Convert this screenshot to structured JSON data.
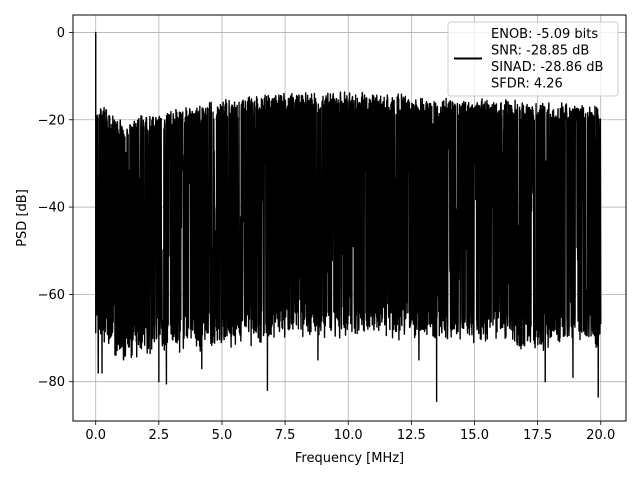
{
  "chart_data": {
    "type": "line",
    "title": "",
    "xlabel": "Frequency [MHz]",
    "ylabel": "PSD [dB]",
    "xlim": [
      -0.9,
      21.0
    ],
    "ylim": [
      -89,
      4
    ],
    "x_ticks": [
      0.0,
      2.5,
      5.0,
      7.5,
      10.0,
      12.5,
      15.0,
      17.5,
      20.0
    ],
    "x_tick_labels": [
      "0.0",
      "2.5",
      "5.0",
      "7.5",
      "10.0",
      "12.5",
      "15.0",
      "17.5",
      "20.0"
    ],
    "y_ticks": [
      0,
      -20,
      -40,
      -60,
      -80
    ],
    "y_tick_labels": [
      "0",
      "−20",
      "−40",
      "−60",
      "−80"
    ],
    "grid": true,
    "legend_position": "top-right",
    "series": [
      {
        "color": "#000000",
        "legend_lines": [
          "ENOB: -5.09 bits",
          "SNR: -28.85 dB",
          "SINAD: -28.86 dB",
          "SFDR: 4.26"
        ],
        "x_range": [
          0.0,
          20.0
        ],
        "peak": {
          "x": 0.0,
          "y": 0.0
        },
        "upper_envelope": [
          {
            "x": 0.0,
            "y": -22
          },
          {
            "x": 0.1,
            "y": -20
          },
          {
            "x": 1.0,
            "y": -24
          },
          {
            "x": 2.5,
            "y": -22
          },
          {
            "x": 5.0,
            "y": -19
          },
          {
            "x": 7.5,
            "y": -17.5
          },
          {
            "x": 10.0,
            "y": -17.5
          },
          {
            "x": 12.5,
            "y": -18
          },
          {
            "x": 15.0,
            "y": -19
          },
          {
            "x": 17.5,
            "y": -19.5
          },
          {
            "x": 20.0,
            "y": -20.5
          }
        ],
        "lower_envelope": [
          {
            "x": 0.0,
            "y": -64
          },
          {
            "x": 1.0,
            "y": -70
          },
          {
            "x": 2.5,
            "y": -68
          },
          {
            "x": 5.0,
            "y": -67
          },
          {
            "x": 7.5,
            "y": -65
          },
          {
            "x": 10.0,
            "y": -64
          },
          {
            "x": 12.5,
            "y": -65
          },
          {
            "x": 15.0,
            "y": -66
          },
          {
            "x": 17.5,
            "y": -67
          },
          {
            "x": 20.0,
            "y": -67
          }
        ],
        "deep_nulls": [
          {
            "x": 0.1,
            "y": -78
          },
          {
            "x": 0.25,
            "y": -78
          },
          {
            "x": 1.1,
            "y": -75
          },
          {
            "x": 2.5,
            "y": -80
          },
          {
            "x": 2.8,
            "y": -80.5
          },
          {
            "x": 4.2,
            "y": -77
          },
          {
            "x": 6.8,
            "y": -82
          },
          {
            "x": 8.8,
            "y": -75
          },
          {
            "x": 12.8,
            "y": -75
          },
          {
            "x": 13.5,
            "y": -84.5
          },
          {
            "x": 17.8,
            "y": -80
          },
          {
            "x": 18.9,
            "y": -79
          },
          {
            "x": 19.9,
            "y": -83.5
          }
        ]
      }
    ]
  }
}
